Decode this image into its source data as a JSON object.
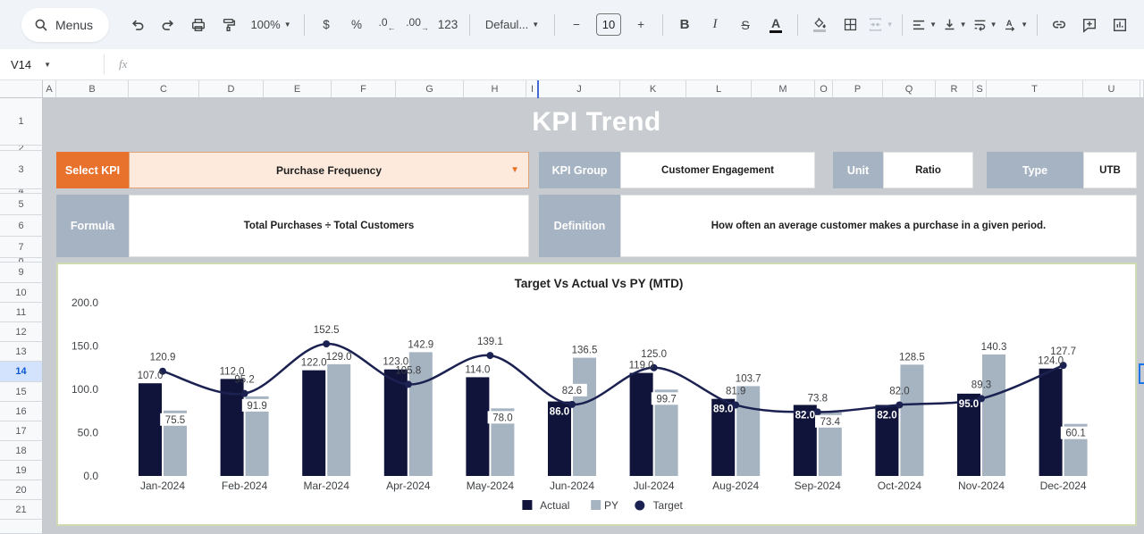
{
  "toolbar": {
    "menus_label": "Menus",
    "zoom_value": "100%",
    "currency_label": "$",
    "percent_label": "%",
    "decrease_decimal_label": ".0",
    "increase_decimal_label": ".00",
    "more_formats_label": "123",
    "font_value": "Defaul...",
    "minus_label": "−",
    "font_size_value": "10",
    "plus_label": "+",
    "bold_label": "B",
    "italic_label": "I",
    "strikethrough_label": "S",
    "text_color_label": "A",
    "rotate_label": "A"
  },
  "formula_bar": {
    "name_box_value": "V14",
    "fx_label": "fx"
  },
  "grid": {
    "column_labels": [
      "A",
      "B",
      "C",
      "D",
      "E",
      "F",
      "G",
      "H",
      "I",
      "J",
      "K",
      "L",
      "M",
      "O",
      "P",
      "Q",
      "R",
      "S",
      "T",
      "U",
      ""
    ],
    "row_labels": [
      "1",
      "2",
      "3",
      "4",
      "5",
      "6",
      "7",
      "8",
      "9",
      "10",
      "11",
      "12",
      "13",
      "14",
      "15",
      "16",
      "17",
      "18",
      "19",
      "20",
      "21",
      ""
    ],
    "selected_row_label": "14"
  },
  "dashboard": {
    "title": "KPI Trend",
    "select_kpi_label": "Select KPI",
    "select_kpi_value": "Purchase Frequency",
    "kpi_group_label": "KPI Group",
    "kpi_group_value": "Customer Engagement",
    "unit_label": "Unit",
    "unit_value": "Ratio",
    "type_label": "Type",
    "type_value": "UTB",
    "formula_label": "Formula",
    "formula_value": "Total Purchases ÷ Total Customers",
    "definition_label": "Definition",
    "definition_value": "How often an average customer makes a purchase in a given period."
  },
  "chart_data": {
    "type": "bar",
    "title": "Target Vs Actual Vs PY (MTD)",
    "categories": [
      "Jan-2024",
      "Feb-2024",
      "Mar-2024",
      "Apr-2024",
      "May-2024",
      "Jun-2024",
      "Jul-2024",
      "Aug-2024",
      "Sep-2024",
      "Oct-2024",
      "Nov-2024",
      "Dec-2024"
    ],
    "series": [
      {
        "name": "Actual",
        "type": "bar",
        "color": "#11143a",
        "values": [
          107.0,
          112.0,
          122.0,
          123.0,
          114.0,
          86.0,
          119.0,
          89.0,
          82.0,
          82.0,
          95.0,
          124.0
        ]
      },
      {
        "name": "PY",
        "type": "bar",
        "color": "#a6b4c2",
        "values": [
          75.5,
          91.9,
          129.0,
          142.9,
          78.0,
          136.5,
          99.7,
          103.7,
          73.4,
          128.5,
          140.3,
          60.1
        ]
      },
      {
        "name": "Target",
        "type": "line",
        "color": "#1b2150",
        "values": [
          120.9,
          95.2,
          152.5,
          105.8,
          139.1,
          82.6,
          125.0,
          81.9,
          73.8,
          82.0,
          89.3,
          127.7
        ]
      }
    ],
    "ylim": [
      0,
      200
    ],
    "ytick_labels": [
      "0.0",
      "50.0",
      "100.0",
      "150.0",
      "200.0"
    ],
    "xlabel": "",
    "ylabel": "",
    "gridlines": "off",
    "legend_position": "bottom",
    "value_format": "one_decimal",
    "label_layout": {
      "actual_inside": [
        false,
        false,
        false,
        false,
        false,
        true,
        false,
        true,
        true,
        true,
        true,
        false
      ],
      "py_chip": [
        true,
        true,
        false,
        false,
        true,
        false,
        true,
        false,
        true,
        false,
        false,
        true
      ]
    }
  },
  "colors": {
    "banner_navy": "#0c0c2d",
    "accent_orange": "#e8712b",
    "peach_fill": "#fdeadd",
    "peach_border": "#e3a275",
    "label_gray": "#a6b3c2",
    "chart_border": "#cfdcb2",
    "canvas_gray": "#c8ccd0",
    "selection_blue": "#1a73e8"
  }
}
